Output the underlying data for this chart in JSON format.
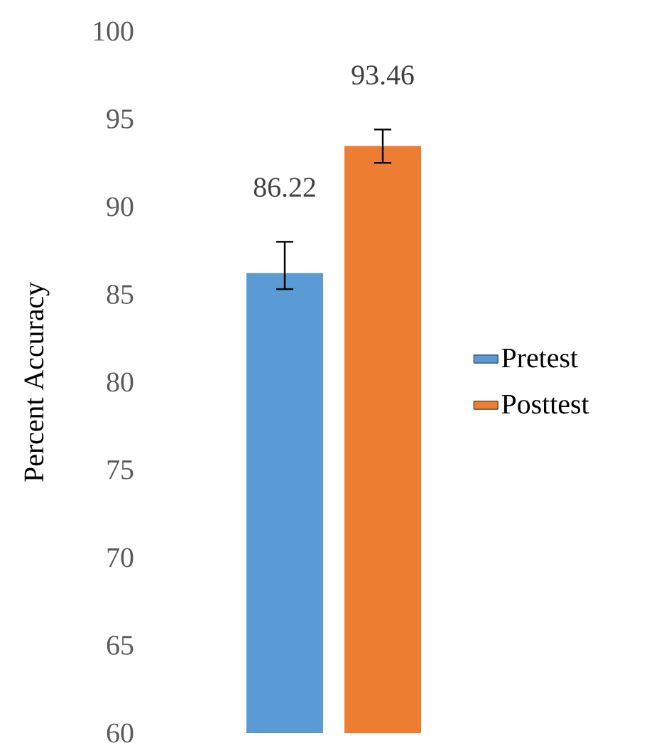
{
  "chart_data": {
    "type": "bar",
    "ylabel": "Percent Accuracy",
    "categories": [
      null
    ],
    "series": [
      {
        "name": "Pretest",
        "color": "#5b9bd5",
        "values": [
          86.22
        ],
        "errors": [
          [
            85.3,
            88.0
          ]
        ]
      },
      {
        "name": "Posttest",
        "color": "#ed7d31",
        "values": [
          93.46
        ],
        "errors": [
          [
            92.5,
            94.4
          ]
        ]
      }
    ],
    "ylim": [
      60,
      100
    ],
    "yticks": [
      60,
      65,
      70,
      75,
      80,
      85,
      90,
      95,
      100
    ],
    "data_labels": true,
    "legend": "right"
  }
}
